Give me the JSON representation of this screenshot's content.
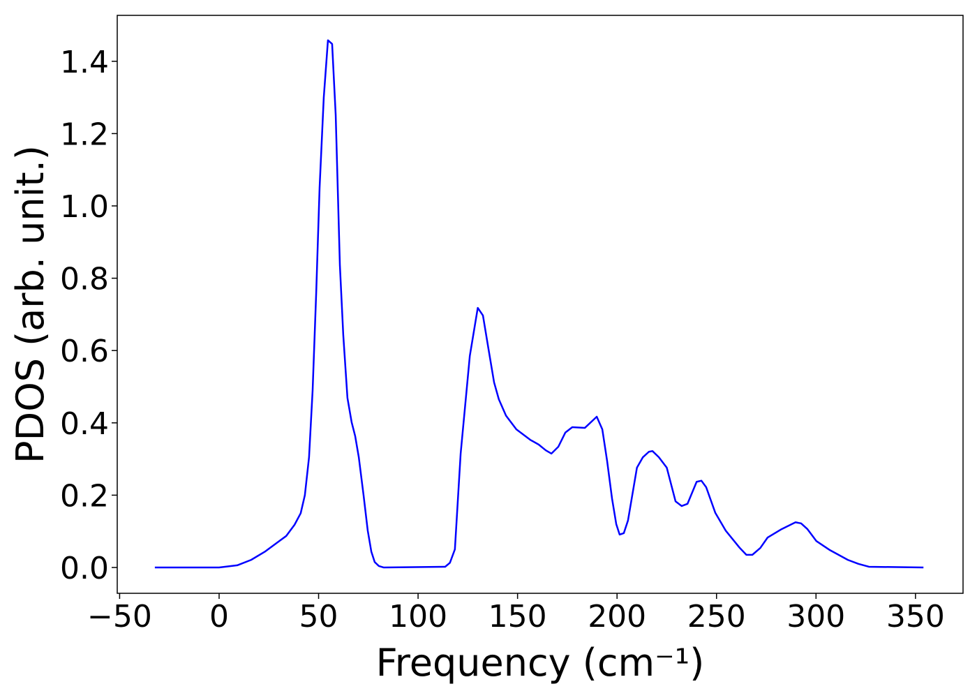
{
  "chart_data": {
    "type": "line",
    "xlabel": "Frequency (cm⁻¹)",
    "ylabel": "PDOS (arb. unit.)",
    "xlim": [
      -51.2,
      373.9
    ],
    "ylim": [
      -0.0714,
      1.527
    ],
    "xticks": [
      {
        "value": -50,
        "label": "−50"
      },
      0,
      50,
      100,
      150,
      200,
      250,
      300,
      350
    ],
    "yticks": [
      {
        "value": 0,
        "label": "0.0"
      },
      0.2,
      0.4,
      0.6,
      0.8,
      {
        "value": 1,
        "label": "1.0"
      },
      1.2,
      1.4
    ],
    "x": [
      -32.3,
      -4.9,
      0,
      9.1,
      16.1,
      23.1,
      30.2,
      33.7,
      37.9,
      41,
      43.1,
      45.2,
      47,
      48.8,
      50.5,
      52.6,
      54.7,
      56.8,
      58.6,
      60.7,
      62.4,
      64.5,
      66.6,
      68.4,
      70.2,
      72.6,
      74.7,
      76.5,
      78.2,
      80.3,
      82.8,
      113.6,
      116,
      118.5,
      121.4,
      126,
      130,
      132.6,
      135.4,
      138.2,
      140.6,
      144.2,
      149.4,
      156.4,
      160.6,
      164.2,
      167,
      170.5,
      174,
      177.5,
      183.8,
      189.8,
      192.6,
      195,
      197.5,
      199.6,
      201.3,
      203.4,
      205.5,
      210,
      213,
      216,
      217.8,
      221,
      225,
      229.4,
      232.5,
      235.4,
      240,
      242.4,
      244.8,
      249.4,
      254.6,
      261.7,
      265,
      268,
      272,
      275.7,
      282.7,
      289.7,
      292.5,
      295.7,
      300.2,
      307,
      316,
      321.3,
      326.6,
      354
    ],
    "series": [
      {
        "color": "#0000ff",
        "values": [
          0,
          0,
          0,
          0.006,
          0.021,
          0.044,
          0.073,
          0.087,
          0.118,
          0.15,
          0.2,
          0.305,
          0.49,
          0.76,
          1.05,
          1.3,
          1.458,
          1.448,
          1.251,
          0.836,
          0.643,
          0.469,
          0.402,
          0.363,
          0.305,
          0.2,
          0.102,
          0.044,
          0.015,
          0.004,
          0,
          0.002,
          0.013,
          0.05,
          0.315,
          0.585,
          0.718,
          0.697,
          0.604,
          0.512,
          0.465,
          0.42,
          0.382,
          0.353,
          0.34,
          0.324,
          0.315,
          0.334,
          0.373,
          0.388,
          0.386,
          0.417,
          0.382,
          0.295,
          0.19,
          0.12,
          0.091,
          0.095,
          0.13,
          0.276,
          0.305,
          0.32,
          0.322,
          0.305,
          0.276,
          0.183,
          0.17,
          0.176,
          0.237,
          0.24,
          0.222,
          0.151,
          0.102,
          0.054,
          0.035,
          0.035,
          0.054,
          0.083,
          0.106,
          0.125,
          0.122,
          0.106,
          0.073,
          0.048,
          0.021,
          0.01,
          0.002,
          0
        ]
      }
    ]
  }
}
